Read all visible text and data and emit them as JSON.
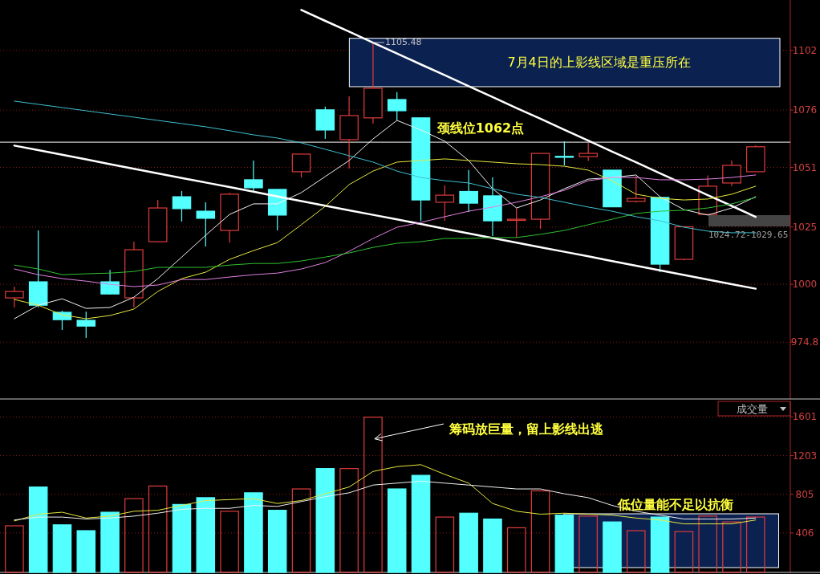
{
  "chart_data": [
    {
      "type": "candlestick",
      "categories": [
        null,
        null,
        null,
        null,
        null,
        null,
        null,
        null,
        null,
        null,
        null,
        null,
        null,
        null,
        null,
        null,
        null,
        null,
        null,
        null,
        null,
        null,
        null,
        null,
        null,
        null,
        null,
        null,
        null,
        null,
        null,
        null
      ],
      "ohlc": [
        [
          994.1,
          999.0,
          989.9,
          996.9
        ],
        [
          1001.1,
          1023.5,
          989.9,
          990.9
        ],
        [
          987.8,
          988.5,
          980.1,
          984.6
        ],
        [
          984.3,
          988.1,
          976.6,
          981.8
        ],
        [
          1001.1,
          1006.3,
          995.5,
          995.8
        ],
        [
          994.1,
          1018.6,
          989.9,
          1015.1
        ],
        [
          1018.6,
          1036.8,
          1018.6,
          1033.3
        ],
        [
          1038.2,
          1040.7,
          1027.4,
          1033.0
        ],
        [
          1031.9,
          1035.8,
          1016.5,
          1028.8
        ],
        [
          1023.5,
          1040.0,
          1018.2,
          1039.3
        ],
        [
          1045.6,
          1054.0,
          1040.7,
          1042.1
        ],
        [
          1041.4,
          1041.4,
          1023.5,
          1030.2
        ],
        [
          1049.1,
          1056.8,
          1046.6,
          1056.8
        ],
        [
          1076.1,
          1077.5,
          1063.4,
          1067.3
        ],
        [
          1063.1,
          1082.0,
          1050.5,
          1073.6
        ],
        [
          1072.6,
          1105.48,
          1070.1,
          1085.5
        ],
        [
          1080.6,
          1083.8,
          1071.5,
          1075.7
        ],
        [
          1072.6,
          1072.6,
          1027.7,
          1036.8
        ],
        [
          1035.8,
          1043.1,
          1027.7,
          1038.9
        ],
        [
          1040.5,
          1049.9,
          1031.6,
          1035.4
        ],
        [
          1038.6,
          1046.6,
          1021.1,
          1027.7
        ],
        [
          1027.9,
          1033.3,
          1020.5,
          1028.4
        ],
        [
          1028.4,
          1057.1,
          1024.2,
          1057.1
        ],
        [
          1055.8,
          1062.4,
          1051.9,
          1055.4
        ],
        [
          1055.7,
          1061.7,
          1053.8,
          1057.1
        ],
        [
          1049.8,
          1049.8,
          1033.8,
          1033.8
        ],
        [
          1036.2,
          1047.2,
          1035.8,
          1037.5
        ],
        [
          1037.9,
          1037.9,
          1005.3,
          1008.8
        ],
        [
          1010.9,
          1025.1,
          1010.5,
          1025.1
        ],
        [
          1030.5,
          1047.5,
          1030.5,
          1042.8
        ],
        [
          1044.2,
          1054.0,
          1042.9,
          1051.9
        ],
        [
          1049.1,
          1060.6,
          1049.1,
          1060.0
        ]
      ],
      "series": [
        {
          "type": "line",
          "color": "#f0f0f0",
          "values": [
            985.0,
            990.9,
            993.7,
            989.5,
            989.9,
            994.4,
            1002.5,
            1011.9,
            1021.4,
            1030.5,
            1035.1,
            1035.1,
            1040.0,
            1047.0,
            1054.0,
            1063.4,
            1071.5,
            1067.3,
            1062.4,
            1054.0,
            1041.7,
            1033.3,
            1036.8,
            1041.7,
            1045.9,
            1046.6,
            1047.7,
            1038.2,
            1032.6,
            1030.2,
            1033.3,
            1038.2
          ]
        },
        {
          "type": "line",
          "color": "#e8e840",
          "values": [
            993.4,
            990.9,
            986.7,
            985.0,
            986.4,
            989.2,
            996.9,
            1002.5,
            1005.3,
            1010.9,
            1014.7,
            1018.2,
            1026.0,
            1034.0,
            1043.5,
            1049.4,
            1053.3,
            1054.0,
            1054.7,
            1054.0,
            1053.3,
            1052.6,
            1052.2,
            1051.5,
            1049.8,
            1045.2,
            1039.3,
            1037.5,
            1036.8,
            1037.2,
            1039.3,
            1042.8
          ]
        },
        {
          "type": "line",
          "color": "#e080e0",
          "values": [
            1006.7,
            1004.2,
            1002.5,
            1001.4,
            1000.0,
            999.0,
            999.7,
            1002.1,
            1002.1,
            1003.2,
            1004.2,
            1004.9,
            1006.7,
            1009.5,
            1014.4,
            1020.0,
            1024.9,
            1027.0,
            1029.5,
            1031.9,
            1033.7,
            1035.8,
            1038.2,
            1041.0,
            1045.2,
            1046.6,
            1046.6,
            1045.6,
            1045.6,
            1045.9,
            1046.6,
            1047.7
          ]
        },
        {
          "type": "line",
          "color": "#30c030",
          "values": [
            1008.4,
            1006.7,
            1004.2,
            1004.6,
            1004.9,
            1005.6,
            1007.4,
            1007.4,
            1007.4,
            1008.4,
            1009.1,
            1009.1,
            1010.2,
            1011.9,
            1013.7,
            1016.1,
            1017.9,
            1018.6,
            1020.0,
            1020.0,
            1020.4,
            1020.4,
            1021.8,
            1023.5,
            1026.0,
            1028.4,
            1030.9,
            1031.9,
            1032.3,
            1033.3,
            1035.1,
            1037.9
          ]
        },
        {
          "type": "line",
          "color": "#40c0d0",
          "values": [
            1079.9,
            1078.5,
            1077.1,
            1075.7,
            1074.3,
            1072.9,
            1071.5,
            1070.1,
            1068.7,
            1067.0,
            1065.2,
            1063.8,
            1061.7,
            1058.9,
            1056.1,
            1053.3,
            1049.4,
            1046.6,
            1045.2,
            1044.2,
            1041.7,
            1039.3,
            1037.9,
            1035.8,
            1033.7,
            1031.9,
            1029.5,
            1027.7,
            1024.9,
            1023.2,
            1022.5,
            1022.5
          ]
        },
        {
          "type": "line",
          "color": "#ffffff",
          "values": [
            null,
            null,
            null,
            null,
            null,
            null,
            null,
            null,
            null,
            null,
            null,
            null,
            1119.7,
            1114.9,
            1110.2,
            1105.4,
            1100.7,
            1095.9,
            1091.2,
            1086.4,
            1081.7,
            1076.9,
            1072.2,
            1067.4,
            1062.7,
            1057.9,
            1053.2,
            1048.4,
            1043.7,
            1038.9,
            1034.2,
            1029.4
          ]
        },
        {
          "type": "line",
          "color": "#ffffff",
          "values": [
            1060.5,
            1058.5,
            1056.5,
            1054.5,
            1052.4,
            1050.4,
            1048.4,
            1046.4,
            1044.4,
            1042.4,
            1040.4,
            1038.3,
            1036.3,
            1034.3,
            1032.3,
            1030.3,
            1028.3,
            1026.3,
            1024.2,
            1022.2,
            1020.2,
            1018.2,
            1016.2,
            1014.2,
            1012.2,
            1010.1,
            1008.1,
            1006.1,
            1004.1,
            1002.1,
            1000.1,
            998.1
          ]
        }
      ],
      "ylim": [
        950,
        1124
      ],
      "yticks": [
        974.8,
        1000,
        1025,
        1051,
        1076,
        1102
      ],
      "grid": "y",
      "tick_labels": "y",
      "ref_lines": [
        {
          "axis": "y",
          "value": 1062,
          "label": "颈线位1062点",
          "color": "#ffffff"
        }
      ],
      "bands": [
        {
          "axis": "y",
          "from": 1086.2,
          "to": 1107.3,
          "label": "7月4日的上影线区域是重压所在",
          "color": "#0b2150"
        }
      ],
      "annotations": [
        {
          "text": "1105.48",
          "y": 1105.48
        },
        "1024.72-1029.65"
      ]
    },
    {
      "type": "bar",
      "title": "成交量",
      "categories": [
        null,
        null,
        null,
        null,
        null,
        null,
        null,
        null,
        null,
        null,
        null,
        null,
        null,
        null,
        null,
        null,
        null,
        null,
        null,
        null,
        null,
        null,
        null,
        null,
        null,
        null,
        null,
        null,
        null,
        null,
        null,
        null
      ],
      "series": [
        {
          "type": "bar",
          "values": [
            480,
            880,
            490,
            430,
            620,
            760,
            890,
            700,
            770,
            630,
            820,
            640,
            860,
            1070,
            1070,
            1600,
            860,
            1000,
            570,
            610,
            550,
            460,
            840,
            590,
            580,
            520,
            430,
            570,
            420,
            580,
            520,
            570
          ],
          "colors": [
            "#e03c3c",
            "#54ffff",
            "#54ffff",
            "#54ffff",
            "#54ffff",
            "#e03c3c",
            "#e03c3c",
            "#54ffff",
            "#54ffff",
            "#e03c3c",
            "#54ffff",
            "#54ffff",
            "#e03c3c",
            "#54ffff",
            "#e03c3c",
            "#e03c3c",
            "#54ffff",
            "#54ffff",
            "#e03c3c",
            "#54ffff",
            "#54ffff",
            "#e03c3c",
            "#e03c3c",
            "#54ffff",
            "#e03c3c",
            "#54ffff",
            "#e03c3c",
            "#54ffff",
            "#e03c3c",
            "#e03c3c",
            "#e03c3c",
            "#e03c3c"
          ]
        },
        {
          "type": "line",
          "color": "#e8e840",
          "values": [
            530,
            600,
            620,
            560,
            580,
            630,
            640,
            690,
            740,
            750,
            760,
            710,
            740,
            810,
            880,
            1040,
            1090,
            1110,
            1010,
            920,
            710,
            630,
            600,
            610,
            600,
            590,
            560,
            540,
            500,
            500,
            500,
            540
          ]
        },
        {
          "type": "line",
          "color": "#f0f0f0",
          "values": [
            540,
            570,
            570,
            550,
            560,
            580,
            610,
            650,
            660,
            660,
            690,
            680,
            730,
            780,
            820,
            900,
            920,
            940,
            920,
            900,
            880,
            860,
            860,
            810,
            770,
            690,
            630,
            590,
            550,
            550,
            550,
            560
          ]
        }
      ],
      "ylim": [
        0,
        1762
      ],
      "yticks": [
        406,
        805,
        1203,
        1601
      ],
      "grid": "y",
      "tick_labels": "y",
      "annotations": [
        "筹码放巨量，留上影线出逃",
        "低位量能不足以抗衡"
      ]
    }
  ]
}
